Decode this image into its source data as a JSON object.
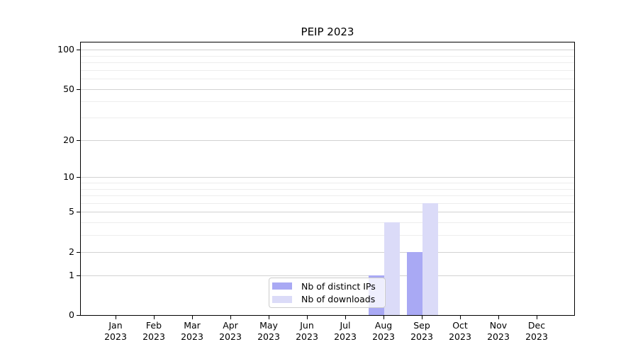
{
  "window": {
    "background": "#ffffff"
  },
  "chart_data": {
    "type": "bar",
    "title": "PEIP 2023",
    "y_scale": "log1p",
    "ylim": [
      0,
      113.5
    ],
    "grid": "horizontal major+minor, on",
    "legend_position": "lower center-right inside plot",
    "categories": [
      "Jan 2023",
      "Feb 2023",
      "Mar 2023",
      "Apr 2023",
      "May 2023",
      "Jun 2023",
      "Jul 2023",
      "Aug 2023",
      "Sep 2023",
      "Oct 2023",
      "Nov 2023",
      "Dec 2023"
    ],
    "y_major_ticks": [
      0,
      1,
      2,
      5,
      10,
      20,
      50,
      100
    ],
    "y_minor_ticks": [
      3,
      4,
      6,
      7,
      8,
      9,
      30,
      40,
      60,
      70,
      80,
      90
    ],
    "series": [
      {
        "name": "Nb of distinct IPs",
        "color": "#a9a9f4",
        "values": [
          0,
          0,
          0,
          0,
          0,
          0,
          0,
          1,
          2,
          0,
          0,
          0
        ]
      },
      {
        "name": "Nb of downloads",
        "color": "#dbdbf8",
        "values": [
          0,
          0,
          0,
          0,
          0,
          0,
          0,
          4,
          6,
          0,
          0,
          0
        ]
      }
    ]
  },
  "colors": {
    "major_grid": "#d2d2d2",
    "minor_grid": "#ededed",
    "spine": "#000000",
    "text": "#000000",
    "legend_border": "#cccccc"
  }
}
